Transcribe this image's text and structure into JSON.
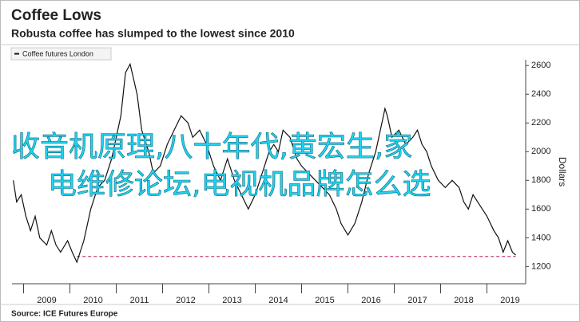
{
  "chart_data": {
    "type": "line",
    "title": "Coffee Lows",
    "subtitle": "Robusta coffee has slumped to the lowest since 2010",
    "source": "Source: ICE Futures Europe",
    "y_label": "Dollars",
    "overlay_text": [
      "收音机原理,八十年代,黄宏生,家",
      "电维修论坛,电视机品牌怎么选"
    ],
    "xlim": [
      2008.75,
      2019.75
    ],
    "xticks": [
      2009,
      2010,
      2011,
      2012,
      2013,
      2014,
      2015,
      2016,
      2017,
      2018,
      2019
    ],
    "ylim": [
      1080,
      2640
    ],
    "yticks": [
      1200,
      1400,
      1600,
      1800,
      2000,
      2200,
      2400,
      2600
    ],
    "reference_line": {
      "y": 1270,
      "x": [
        2010.15,
        2019.62
      ],
      "color": "#c2407a"
    },
    "series": [
      {
        "name": "Coffee futures London",
        "color": "#111111",
        "x": [
          2008.78,
          2008.85,
          2008.95,
          2009.05,
          2009.15,
          2009.25,
          2009.35,
          2009.5,
          2009.6,
          2009.7,
          2009.8,
          2009.95,
          2010.05,
          2010.15,
          2010.3,
          2010.45,
          2010.6,
          2010.75,
          2010.9,
          2011.0,
          2011.1,
          2011.2,
          2011.3,
          2011.45,
          2011.55,
          2011.7,
          2011.8,
          2011.95,
          2012.1,
          2012.25,
          2012.4,
          2012.55,
          2012.65,
          2012.8,
          2012.95,
          2013.1,
          2013.25,
          2013.4,
          2013.55,
          2013.7,
          2013.85,
          2014.0,
          2014.15,
          2014.3,
          2014.4,
          2014.5,
          2014.6,
          2014.75,
          2014.9,
          2015.0,
          2015.15,
          2015.3,
          2015.45,
          2015.6,
          2015.75,
          2015.85,
          2016.0,
          2016.15,
          2016.3,
          2016.45,
          2016.6,
          2016.7,
          2016.8,
          2016.85,
          2016.95,
          2017.1,
          2017.25,
          2017.4,
          2017.5,
          2017.6,
          2017.7,
          2017.8,
          2017.95,
          2018.1,
          2018.25,
          2018.4,
          2018.5,
          2018.6,
          2018.7,
          2018.8,
          2018.9,
          2019.0,
          2019.15,
          2019.25,
          2019.35,
          2019.45,
          2019.55,
          2019.62
        ],
        "values": [
          1800,
          1650,
          1700,
          1550,
          1450,
          1550,
          1400,
          1350,
          1450,
          1350,
          1300,
          1380,
          1300,
          1230,
          1380,
          1600,
          1750,
          1800,
          1950,
          2100,
          2250,
          2550,
          2610,
          2400,
          2150,
          2000,
          1850,
          1900,
          2050,
          2150,
          2250,
          2200,
          2100,
          2150,
          2050,
          1900,
          1800,
          1950,
          1800,
          1700,
          1600,
          1700,
          1850,
          2000,
          2050,
          2000,
          2150,
          2100,
          1950,
          1900,
          1850,
          1800,
          1750,
          1700,
          1600,
          1500,
          1420,
          1500,
          1650,
          1850,
          2000,
          2150,
          2300,
          2250,
          2100,
          2150,
          2050,
          2100,
          2150,
          2050,
          2000,
          1900,
          1800,
          1750,
          1800,
          1750,
          1650,
          1600,
          1700,
          1650,
          1600,
          1550,
          1450,
          1400,
          1300,
          1380,
          1300,
          1280
        ]
      }
    ]
  }
}
